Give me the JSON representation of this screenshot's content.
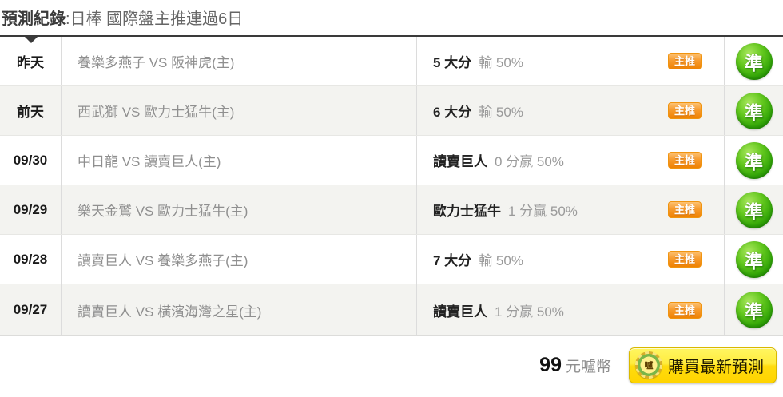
{
  "header": {
    "title_bold": "預測紀錄",
    "title_rest": ":日棒 國際盤主推連過6日"
  },
  "labels": {
    "main_pick_badge": "主推",
    "accurate_stamp": "準"
  },
  "table": {
    "rows": [
      {
        "date": "昨天",
        "matchup": "養樂多燕子 VS 阪神虎(主)",
        "pick": "5 大分",
        "result": "輸 50%"
      },
      {
        "date": "前天",
        "matchup": "西武獅 VS 歐力士猛牛(主)",
        "pick": "6 大分",
        "result": "輸 50%"
      },
      {
        "date": "09/30",
        "matchup": "中日龍 VS 讀賣巨人(主)",
        "pick": "讀賣巨人",
        "result": "0 分贏 50%"
      },
      {
        "date": "09/29",
        "matchup": "樂天金鷲 VS 歐力士猛牛(主)",
        "pick": "歐力士猛牛",
        "result": "1 分贏 50%"
      },
      {
        "date": "09/28",
        "matchup": "讀賣巨人 VS 養樂多燕子(主)",
        "pick": "7 大分",
        "result": "輸 50%"
      },
      {
        "date": "09/27",
        "matchup": "讀賣巨人 VS 橫濱海灣之星(主)",
        "pick": "讀賣巨人",
        "result": "1 分贏 50%"
      }
    ]
  },
  "footer": {
    "price": "99",
    "currency_label": "元嚧幣",
    "buy_button_label": "購買最新預測",
    "coin_icon_char": "嚧"
  },
  "colors": {
    "accent_orange": "#ef8203",
    "accent_green": "#2fa307",
    "button_yellow": "#ffd700",
    "row_alt_bg": "#f3f3f0",
    "table_border_dark": "#3a3a3a"
  }
}
